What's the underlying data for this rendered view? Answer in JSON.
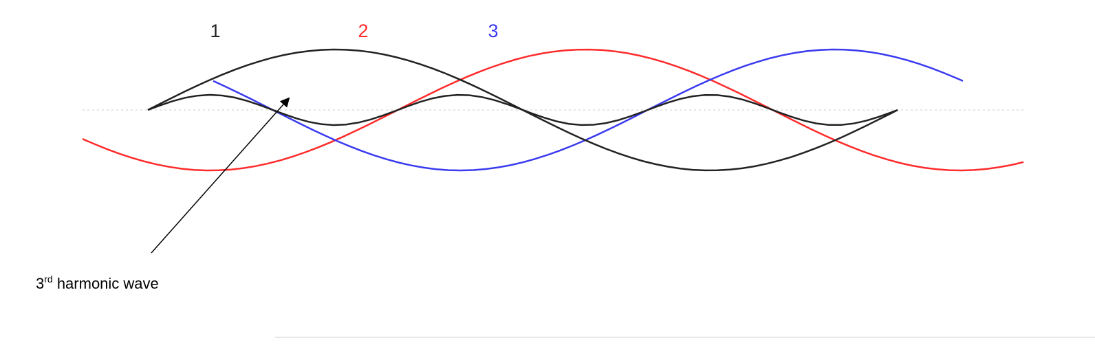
{
  "diagram": {
    "description_text": "",
    "phases": [
      {
        "label": "1",
        "color": "#222222"
      },
      {
        "label": "2",
        "color": "#ff2b2b"
      },
      {
        "label": "3",
        "color": "#3a3af0"
      }
    ],
    "harmonic": {
      "color": "#222222"
    },
    "annotation": {
      "number": "3",
      "superscript": "rd",
      "text": " harmonic wave"
    },
    "colors": {
      "baseline": "#cccccc",
      "arrow": "#000000",
      "rule": "#c8c8c8"
    }
  }
}
